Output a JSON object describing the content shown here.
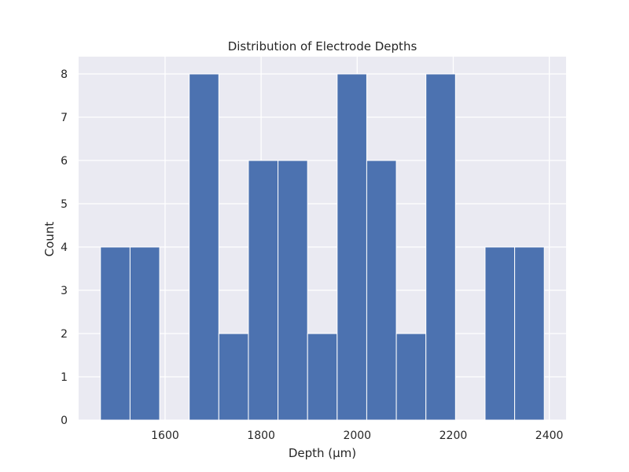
{
  "chart_data": {
    "type": "bar",
    "title": "Distribution of Electrode Depths",
    "xlabel": "Depth (µm)",
    "ylabel": "Count",
    "xlim": [
      1420,
      2435
    ],
    "ylim": [
      0,
      8.4
    ],
    "xticks": [
      1600,
      1800,
      2000,
      2200,
      2400
    ],
    "yticks": [
      0,
      1,
      2,
      3,
      4,
      5,
      6,
      7,
      8
    ],
    "bin_width": 61.6,
    "bins": [
      {
        "x_start": 1465.5,
        "x_end": 1527.1,
        "count": 4
      },
      {
        "x_start": 1527.1,
        "x_end": 1588.7,
        "count": 4
      },
      {
        "x_start": 1588.7,
        "x_end": 1650.3,
        "count": 0
      },
      {
        "x_start": 1650.3,
        "x_end": 1711.9,
        "count": 8
      },
      {
        "x_start": 1711.9,
        "x_end": 1773.5,
        "count": 2
      },
      {
        "x_start": 1773.5,
        "x_end": 1835.1,
        "count": 6
      },
      {
        "x_start": 1835.1,
        "x_end": 1896.7,
        "count": 6
      },
      {
        "x_start": 1896.7,
        "x_end": 1958.3,
        "count": 2
      },
      {
        "x_start": 1958.3,
        "x_end": 2019.9,
        "count": 8
      },
      {
        "x_start": 2019.9,
        "x_end": 2081.5,
        "count": 6
      },
      {
        "x_start": 2081.5,
        "x_end": 2143.1,
        "count": 2
      },
      {
        "x_start": 2143.1,
        "x_end": 2204.7,
        "count": 8
      },
      {
        "x_start": 2204.7,
        "x_end": 2266.3,
        "count": 0
      },
      {
        "x_start": 2266.3,
        "x_end": 2327.9,
        "count": 4
      },
      {
        "x_start": 2327.9,
        "x_end": 2389.5,
        "count": 4
      }
    ],
    "grid": true,
    "colors": {
      "bar": "#4c72b0",
      "bar_edge": "#ffffff",
      "plot_background": "#eaeaf2",
      "grid": "#ffffff"
    }
  }
}
